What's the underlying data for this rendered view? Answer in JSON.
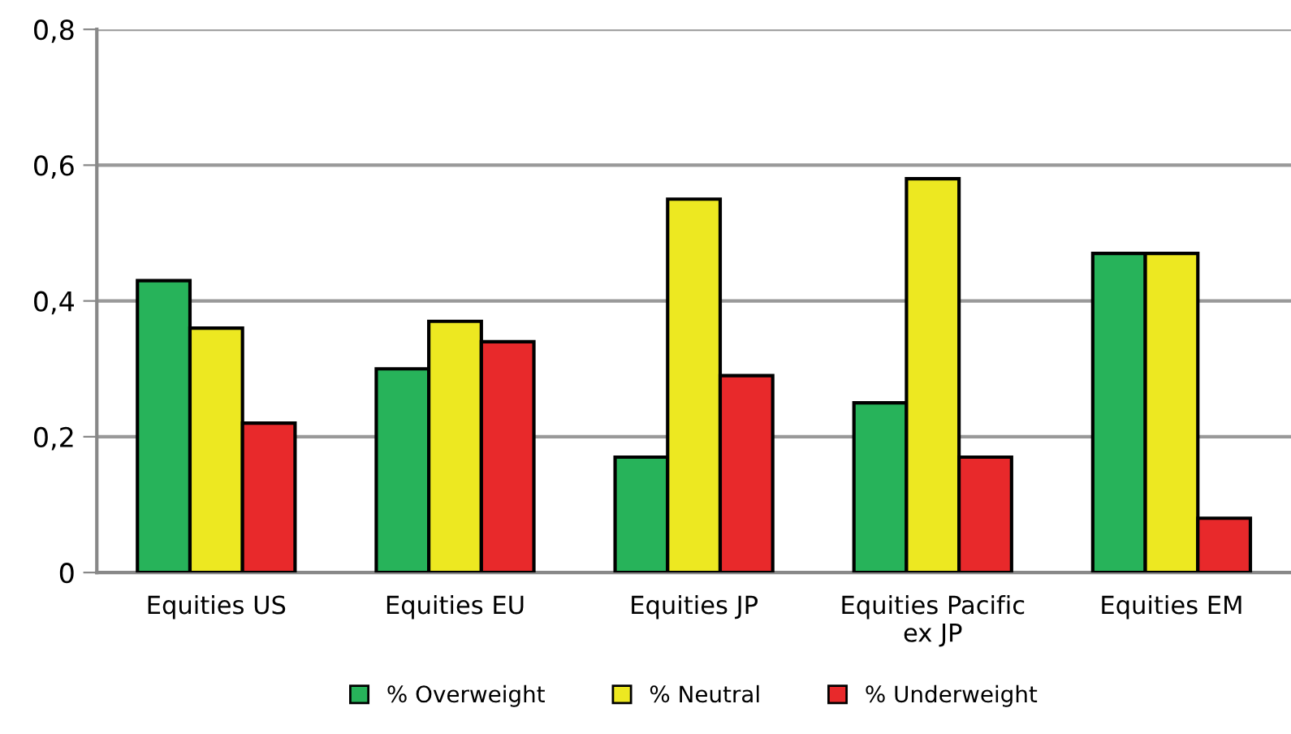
{
  "chart_data": {
    "type": "bar",
    "categories": [
      "Equities US",
      "Equities EU",
      "Equities JP",
      "Equities Pacific\nex JP",
      "Equities EM"
    ],
    "series": [
      {
        "name": "% Overweight",
        "color": "#27b35a",
        "values": [
          0.43,
          0.3,
          0.17,
          0.25,
          0.47
        ]
      },
      {
        "name": "% Neutral",
        "color": "#ede821",
        "values": [
          0.36,
          0.37,
          0.55,
          0.58,
          0.47
        ]
      },
      {
        "name": "% Underweight",
        "color": "#e8292b",
        "values": [
          0.22,
          0.34,
          0.29,
          0.17,
          0.08
        ]
      }
    ],
    "ylim": [
      0,
      0.8
    ],
    "yticks": [
      {
        "value": 0,
        "label": "0"
      },
      {
        "value": 0.2,
        "label": "0,2"
      },
      {
        "value": 0.4,
        "label": "0,4"
      },
      {
        "value": 0.6,
        "label": "0,6"
      },
      {
        "value": 0.8,
        "label": "0,8"
      }
    ],
    "grid": "y",
    "legend": "bottom"
  }
}
